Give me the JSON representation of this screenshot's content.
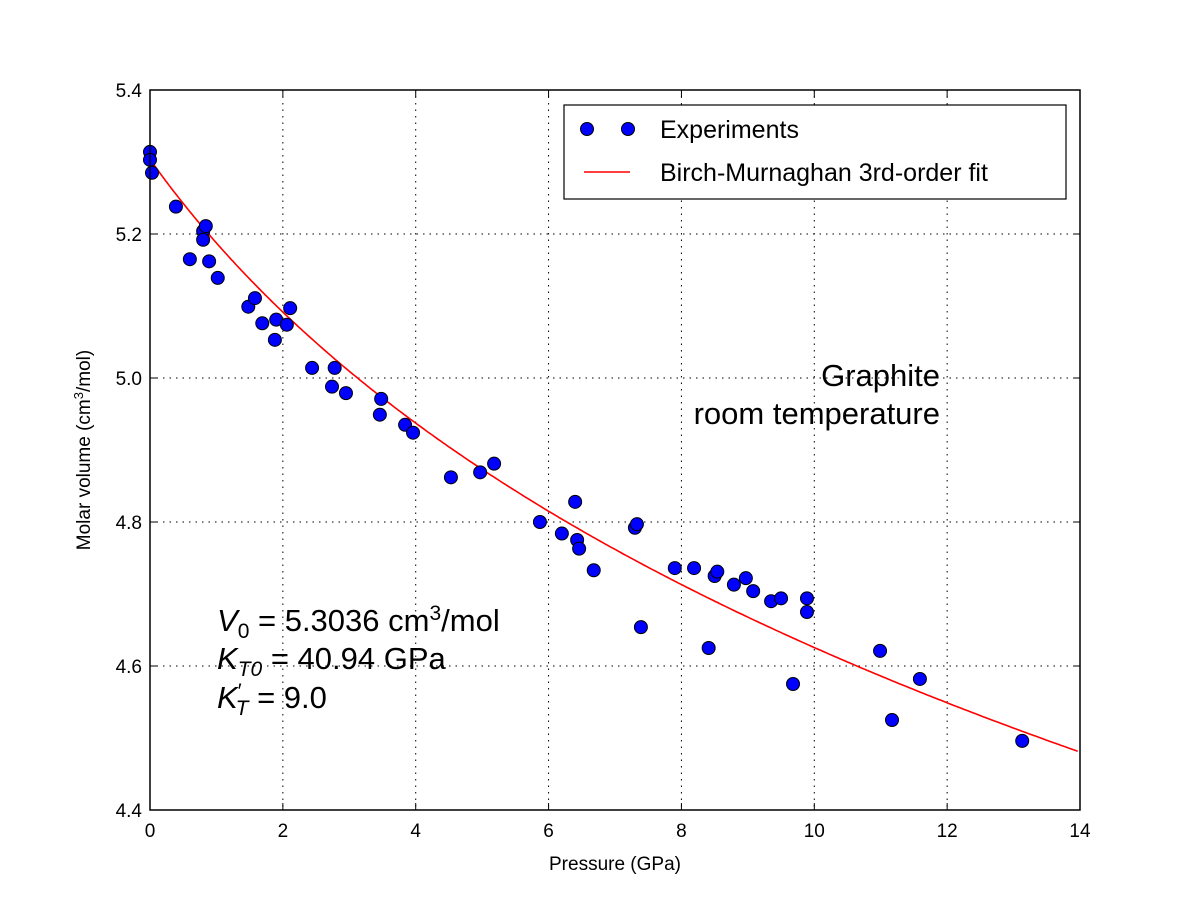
{
  "chart_data": {
    "type": "scatter",
    "xlabel": "Pressure (GPa)",
    "ylabel_main": "Molar volume (cm",
    "ylabel_sup": "3",
    "ylabel_tail": "/mol)",
    "xlim": [
      0,
      14
    ],
    "ylim": [
      4.4,
      5.4
    ],
    "xticks": [
      "0",
      "2",
      "4",
      "6",
      "8",
      "10",
      "12",
      "14"
    ],
    "yticks": [
      "4.4",
      "4.6",
      "4.8",
      "5.0",
      "5.2",
      "5.4"
    ],
    "grid": true,
    "legend_position": "top-right",
    "colors": {
      "experiments": "#0000ff",
      "fit": "#ff0000"
    },
    "series": [
      {
        "name": "Experiments",
        "type": "scatter",
        "x": [
          0,
          0,
          0.03,
          0.39,
          0.6,
          0.8,
          0.84,
          0.8,
          0.89,
          1.02,
          1.48,
          1.58,
          1.69,
          1.9,
          1.88,
          2.06,
          2.11,
          2.44,
          2.74,
          2.78,
          2.95,
          3.46,
          3.48,
          3.84,
          3.96,
          4.53,
          4.97,
          5.18,
          5.87,
          6.2,
          6.4,
          6.43,
          6.46,
          6.68,
          7.3,
          7.33,
          7.39,
          7.9,
          8.19,
          8.41,
          8.5,
          8.54,
          8.79,
          8.97,
          9.08,
          9.35,
          9.5,
          9.68,
          9.89,
          9.89,
          10.99,
          11.17,
          11.59,
          13.13
        ],
        "y": [
          5.314,
          5.303,
          5.285,
          5.238,
          5.165,
          5.204,
          5.211,
          5.192,
          5.162,
          5.139,
          5.099,
          5.111,
          5.076,
          5.081,
          5.053,
          5.074,
          5.097,
          5.014,
          4.988,
          5.014,
          4.979,
          4.949,
          4.971,
          4.935,
          4.924,
          4.862,
          4.869,
          4.881,
          4.8,
          4.784,
          4.828,
          4.775,
          4.763,
          4.733,
          4.792,
          4.797,
          4.654,
          4.736,
          4.736,
          4.625,
          4.725,
          4.731,
          4.713,
          4.722,
          4.704,
          4.69,
          4.694,
          4.575,
          4.694,
          4.675,
          4.621,
          4.525,
          4.582,
          4.496
        ]
      },
      {
        "name": "Birch-Murnaghan 3rd-order fit",
        "type": "line",
        "model": {
          "V0": 5.3036,
          "K0": 40.94,
          "K0prime": 9.0
        }
      }
    ],
    "annotations": {
      "sample_line1": "Graphite",
      "sample_line2": "room temperature",
      "v0_sym": "V",
      "v0_sub": "0",
      "v0_val": " = 5.3036 cm",
      "v0_sup": "3",
      "v0_unit": "/mol",
      "k0_sym": "K",
      "k0_sub": "T0",
      "k0_val": " = 40.94 GPa",
      "kp_sym": "K",
      "kp_prime": "′",
      "kp_sub": "T",
      "kp_val": " = 9.0"
    }
  }
}
